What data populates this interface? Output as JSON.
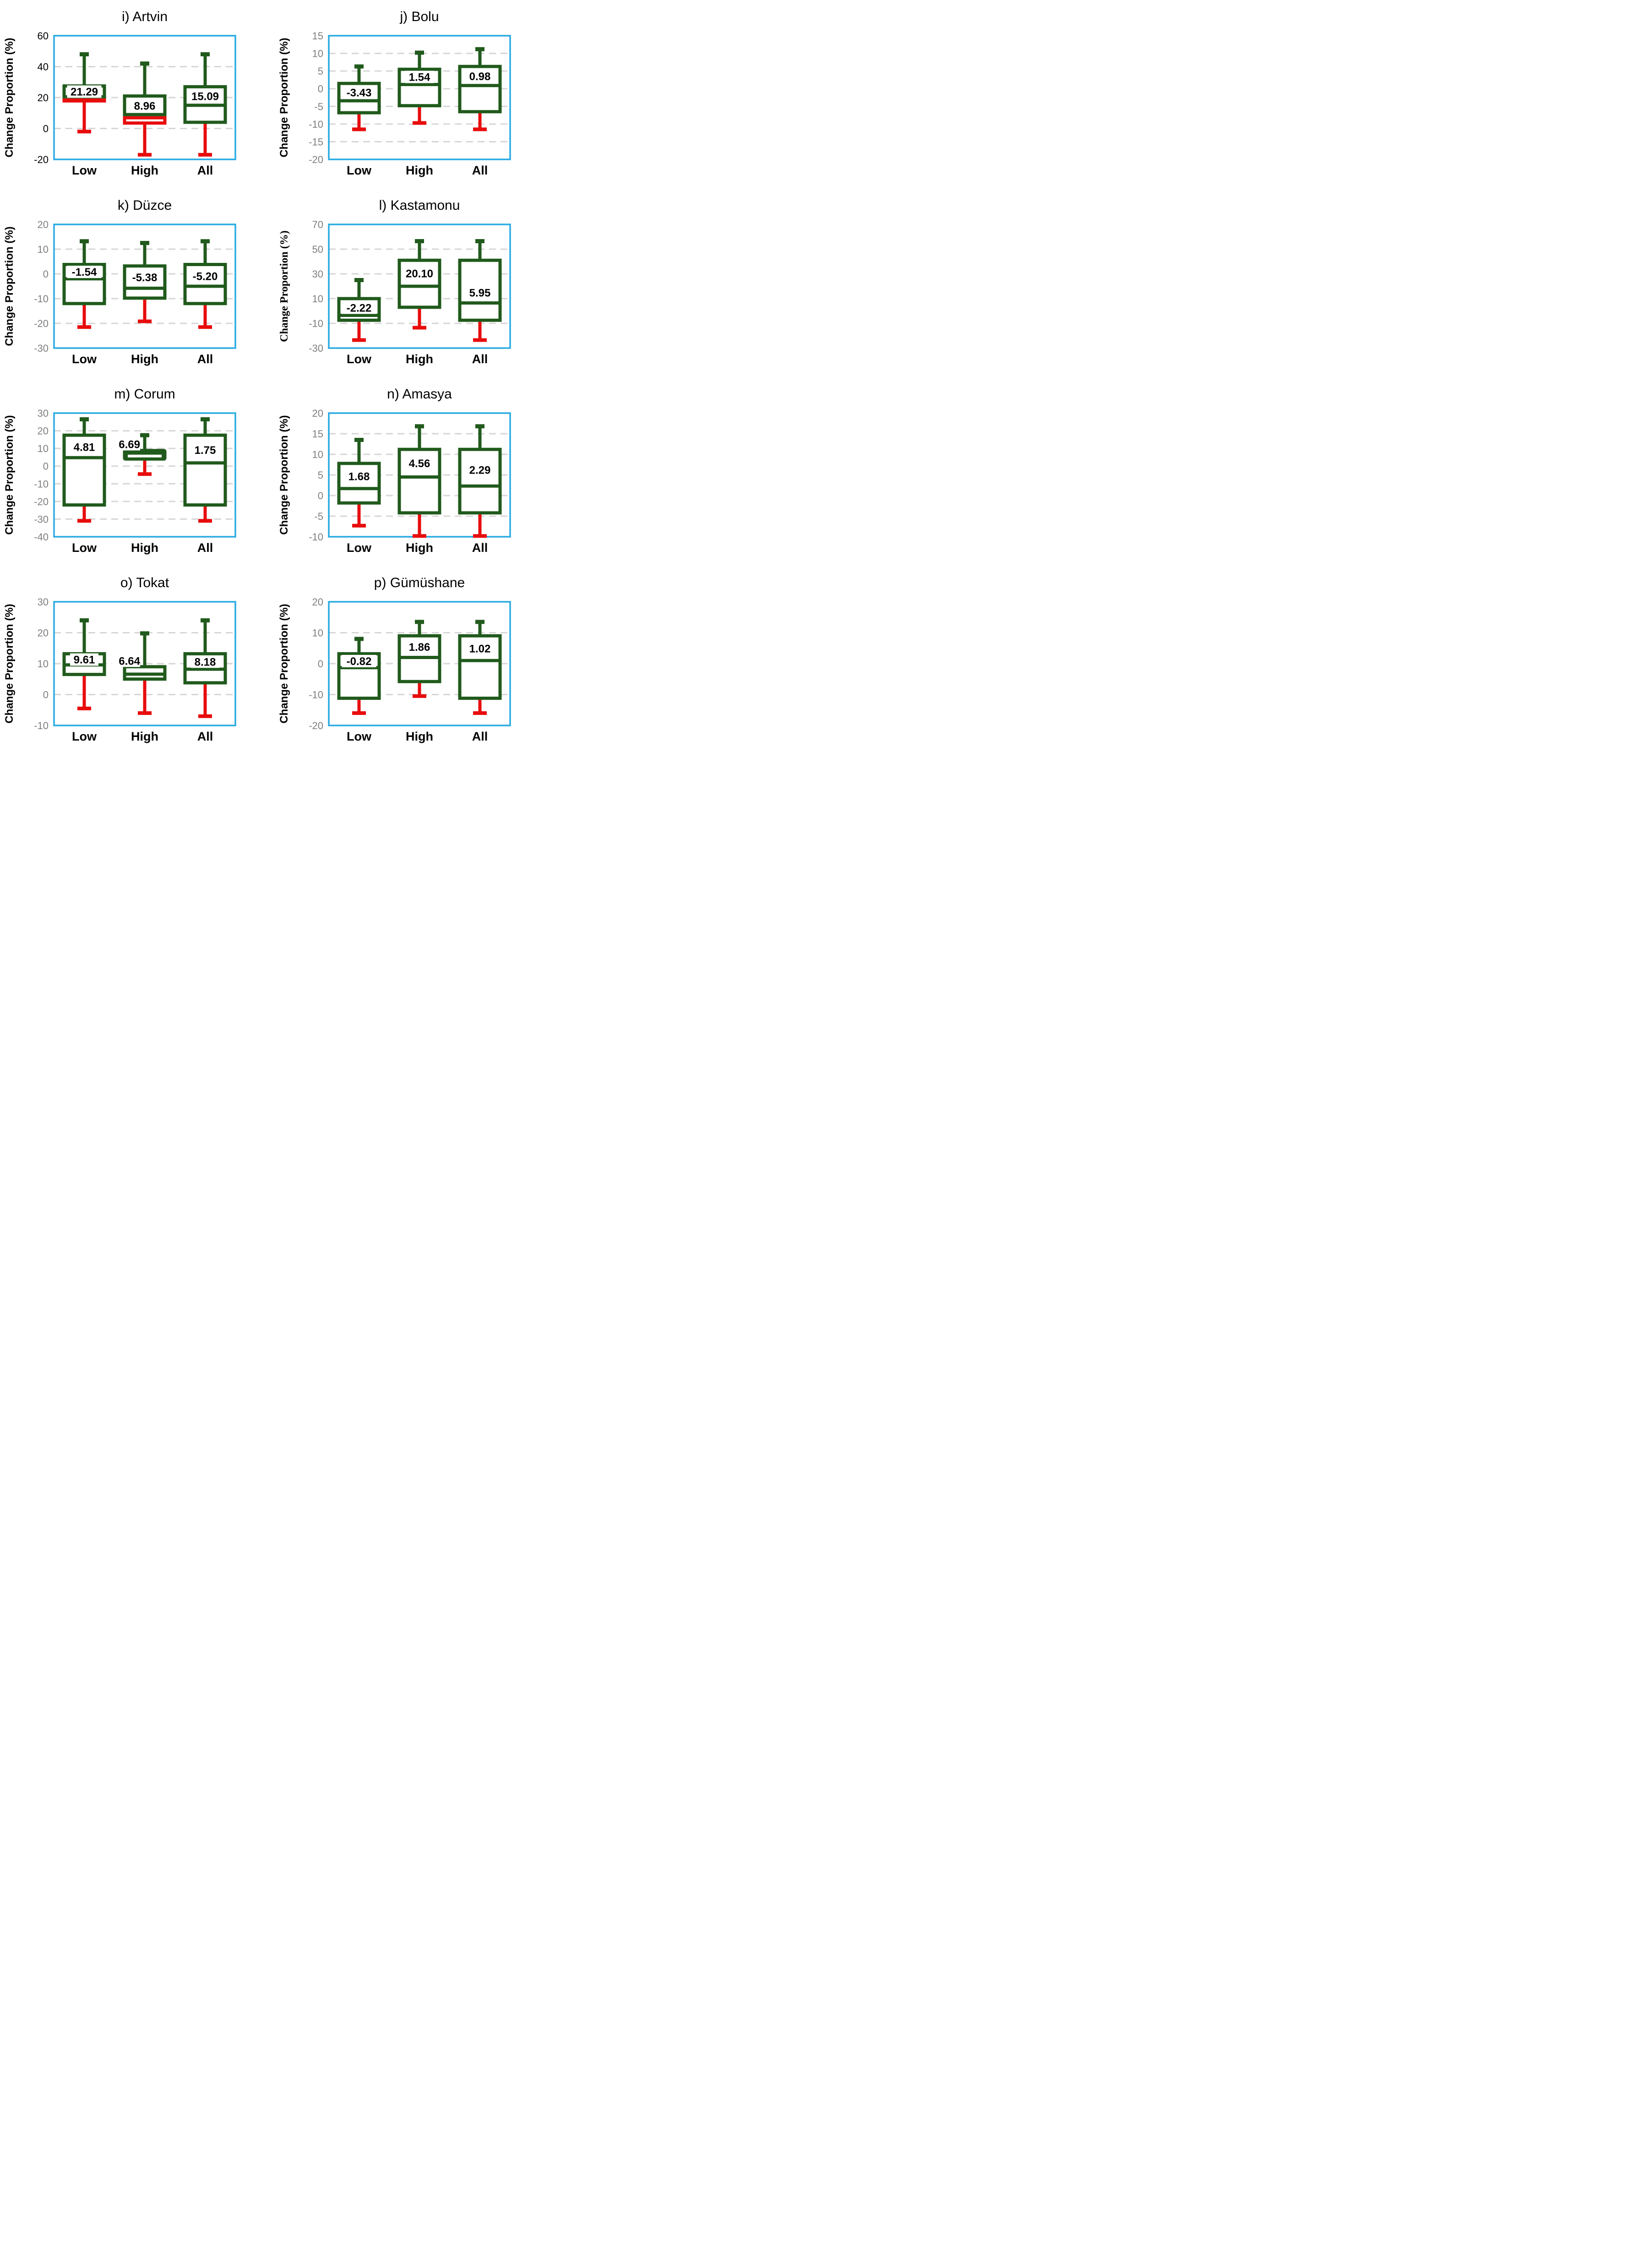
{
  "figure": {
    "name": "change-proportion-boxplot-grid",
    "background": "#FFFFFF",
    "colors": {
      "box_green": "#205A1C",
      "whisker_red": "#E80C0C",
      "plot_border_blue": "#29ABE2",
      "gridline_gray": "#D6D6D6",
      "tick_gray": "#7F7F7F",
      "tick_black": "#000000",
      "label_black": "#000000",
      "median_white": "#FFFFFF"
    }
  },
  "chart_data": [
    {
      "type": "boxplot",
      "id": "i",
      "title": "i) Artvin",
      "ylabel": "Change Proportion (%)",
      "ylabel_font": "sans",
      "tick_color": "#000000",
      "ylim": [
        -20,
        60
      ],
      "yticks": [
        60,
        40,
        20,
        0,
        -20
      ],
      "grid": "dashed-horizontal",
      "categories": [
        "Low",
        "High",
        "All"
      ],
      "boxes": [
        {
          "category": "Low",
          "whisker_min": -2,
          "q1": 18.5,
          "median": 20.5,
          "q3": 27.5,
          "whisker_max": 48,
          "label": "21.29",
          "label_y": 24,
          "label_pos": "in",
          "lower_box": "red",
          "fill": "white"
        },
        {
          "category": "High",
          "whisker_min": -17,
          "q1": 3.5,
          "median": 9,
          "q3": 21,
          "whisker_max": 42,
          "label": "8.96",
          "label_y": 14.8,
          "label_pos": "in",
          "lower_box": "red",
          "fill": "white"
        },
        {
          "category": "All",
          "whisker_min": -17,
          "q1": 4,
          "median": 15,
          "q3": 27,
          "whisker_max": 48,
          "label": "15.09",
          "label_y": 21,
          "label_pos": "in",
          "lower_box": "green",
          "fill": "white"
        }
      ]
    },
    {
      "type": "boxplot",
      "id": "j",
      "title": "j) Bolu",
      "ylabel": "Change Proportion (%)",
      "ylabel_font": "sans",
      "tick_color": "#7F7F7F",
      "ylim": [
        -20,
        15
      ],
      "yticks": [
        15,
        10,
        5,
        0,
        -5,
        -10,
        -15,
        -20
      ],
      "grid": "dashed-horizontal",
      "categories": [
        "Low",
        "High",
        "All"
      ],
      "boxes": [
        {
          "category": "Low",
          "whisker_min": -11.5,
          "q1": -6.8,
          "median": -3.4,
          "q3": 1.5,
          "whisker_max": 6.3,
          "label": "-3.43",
          "label_y": -1,
          "label_pos": "in",
          "lower_box": "green",
          "fill": "white"
        },
        {
          "category": "High",
          "whisker_min": -9.7,
          "q1": -4.8,
          "median": 1.2,
          "q3": 5.5,
          "whisker_max": 10.2,
          "label": "1.54",
          "label_y": 3.4,
          "label_pos": "in",
          "lower_box": "green",
          "fill": "white"
        },
        {
          "category": "All",
          "whisker_min": -11.5,
          "q1": -6.5,
          "median": 0.9,
          "q3": 6.3,
          "whisker_max": 11.2,
          "label": "0.98",
          "label_y": 3.6,
          "label_pos": "in",
          "lower_box": "green",
          "fill": "white"
        }
      ]
    },
    {
      "type": "boxplot",
      "id": "k",
      "title": "k) Düzce",
      "ylabel": "Change Proportion (%)",
      "ylabel_font": "sans",
      "tick_color": "#7F7F7F",
      "ylim": [
        -30,
        20
      ],
      "yticks": [
        20,
        10,
        0,
        -10,
        -20,
        -30
      ],
      "grid": "dashed-horizontal",
      "categories": [
        "Low",
        "High",
        "All"
      ],
      "boxes": [
        {
          "category": "Low",
          "whisker_min": -21.5,
          "q1": -12,
          "median": -2,
          "q3": 3.8,
          "whisker_max": 13.2,
          "label": "-1.54",
          "label_y": 0.9,
          "label_pos": "in",
          "lower_box": "green",
          "fill": "white"
        },
        {
          "category": "High",
          "whisker_min": -19.2,
          "q1": -9.8,
          "median": -5.8,
          "q3": 3.2,
          "whisker_max": 12.5,
          "label": "-5.38",
          "label_y": -1.3,
          "label_pos": "in",
          "lower_box": "green",
          "fill": "white"
        },
        {
          "category": "All",
          "whisker_min": -21.5,
          "q1": -12,
          "median": -5,
          "q3": 3.8,
          "whisker_max": 13.2,
          "label": "-5.20",
          "label_y": -0.8,
          "label_pos": "in",
          "lower_box": "green",
          "fill": "white"
        }
      ]
    },
    {
      "type": "boxplot",
      "id": "l",
      "title": "l) Kastamonu",
      "ylabel": "Change Proportion (%)",
      "ylabel_font": "serif",
      "tick_color": "#7F7F7F",
      "ylim": [
        -30,
        70
      ],
      "yticks": [
        70,
        50,
        30,
        10,
        -10,
        -30
      ],
      "grid": "dashed-horizontal",
      "categories": [
        "Low",
        "High",
        "All"
      ],
      "boxes": [
        {
          "category": "Low",
          "whisker_min": -23.5,
          "q1": -7.5,
          "median": -3.5,
          "q3": 10,
          "whisker_max": 25,
          "label": "-2.22",
          "label_y": 2.8,
          "label_pos": "in",
          "lower_box": "green",
          "fill": "white"
        },
        {
          "category": "High",
          "whisker_min": -13.5,
          "q1": 3,
          "median": 20,
          "q3": 41,
          "whisker_max": 56.5,
          "label": "20.10",
          "label_y": 30.5,
          "label_pos": "in",
          "lower_box": "green",
          "fill": "white"
        },
        {
          "category": "All",
          "whisker_min": -23.5,
          "q1": -7.5,
          "median": 6.5,
          "q3": 41,
          "whisker_max": 56.5,
          "label": "5.95",
          "label_y": 15,
          "label_pos": "in",
          "lower_box": "green",
          "fill": "white"
        }
      ]
    },
    {
      "type": "boxplot",
      "id": "m",
      "title": "m) Corum",
      "ylabel": "Change Proportion (%)",
      "ylabel_font": "sans",
      "tick_color": "#7F7F7F",
      "ylim": [
        -40,
        30
      ],
      "yticks": [
        30,
        20,
        10,
        0,
        -10,
        -20,
        -30,
        -40
      ],
      "grid": "dashed-horizontal",
      "categories": [
        "Low",
        "High",
        "All"
      ],
      "boxes": [
        {
          "category": "Low",
          "whisker_min": -31,
          "q1": -22,
          "median": 4.8,
          "q3": 17.5,
          "whisker_max": 26.5,
          "label": "4.81",
          "label_y": 11,
          "label_pos": "in",
          "lower_box": "green",
          "fill": "white"
        },
        {
          "category": "High",
          "whisker_min": -4.5,
          "q1": 4,
          "median": 5.7,
          "q3": 8.8,
          "whisker_max": 17.5,
          "label": "6.69",
          "label_y": 12.5,
          "label_pos": "left",
          "lower_box": "green",
          "fill": "green"
        },
        {
          "category": "All",
          "whisker_min": -31,
          "q1": -22,
          "median": 1.8,
          "q3": 17.5,
          "whisker_max": 26.5,
          "label": "1.75",
          "label_y": 9.3,
          "label_pos": "in",
          "lower_box": "green",
          "fill": "white"
        }
      ]
    },
    {
      "type": "boxplot",
      "id": "n",
      "title": "n) Amasya",
      "ylabel": "Change Proportion (%)",
      "ylabel_font": "sans",
      "tick_color": "#7F7F7F",
      "ylim": [
        -10,
        20
      ],
      "yticks": [
        20,
        15,
        10,
        5,
        0,
        -5,
        -10
      ],
      "grid": "dashed-horizontal",
      "categories": [
        "Low",
        "High",
        "All"
      ],
      "boxes": [
        {
          "category": "Low",
          "whisker_min": -7.3,
          "q1": -1.8,
          "median": 1.7,
          "q3": 7.8,
          "whisker_max": 13.5,
          "label": "1.68",
          "label_y": 4.7,
          "label_pos": "in",
          "lower_box": "green",
          "fill": "white"
        },
        {
          "category": "High",
          "whisker_min": -9.8,
          "q1": -4.2,
          "median": 4.5,
          "q3": 11.2,
          "whisker_max": 16.8,
          "label": "4.56",
          "label_y": 7.9,
          "label_pos": "in",
          "lower_box": "green",
          "fill": "white"
        },
        {
          "category": "All",
          "whisker_min": -9.8,
          "q1": -4.2,
          "median": 2.3,
          "q3": 11.2,
          "whisker_max": 16.8,
          "label": "2.29",
          "label_y": 6.3,
          "label_pos": "in",
          "lower_box": "green",
          "fill": "white"
        }
      ]
    },
    {
      "type": "boxplot",
      "id": "o",
      "title": "o) Tokat",
      "ylabel": "Change Proportion (%)",
      "ylabel_font": "sans",
      "tick_color": "#7F7F7F",
      "ylim": [
        -10,
        30
      ],
      "yticks": [
        30,
        20,
        10,
        0,
        -10
      ],
      "grid": "dashed-horizontal",
      "categories": [
        "Low",
        "High",
        "All"
      ],
      "boxes": [
        {
          "category": "Low",
          "whisker_min": -4.5,
          "q1": 6.5,
          "median": 9.6,
          "q3": 13.2,
          "whisker_max": 24,
          "label": "9.61",
          "label_y": 11.4,
          "label_pos": "in",
          "lower_box": "green",
          "fill": "white"
        },
        {
          "category": "High",
          "whisker_min": -6,
          "q1": 5,
          "median": 6.6,
          "q3": 9,
          "whisker_max": 19.8,
          "label": "6.64",
          "label_y": 11,
          "label_pos": "left",
          "lower_box": "green",
          "fill": "white"
        },
        {
          "category": "All",
          "whisker_min": -7,
          "q1": 3.8,
          "median": 8.2,
          "q3": 13.2,
          "whisker_max": 24,
          "label": "8.18",
          "label_y": 10.7,
          "label_pos": "in",
          "lower_box": "green",
          "fill": "white"
        }
      ]
    },
    {
      "type": "boxplot",
      "id": "p",
      "title": "p) Gümüshane",
      "ylabel": "Change Proportion (%)",
      "ylabel_font": "sans",
      "tick_color": "#7F7F7F",
      "ylim": [
        -20,
        20
      ],
      "yticks": [
        20,
        10,
        0,
        -10,
        -20
      ],
      "grid": "dashed-horizontal",
      "categories": [
        "Low",
        "High",
        "All"
      ],
      "boxes": [
        {
          "category": "Low",
          "whisker_min": -16,
          "q1": -11.2,
          "median": -1.3,
          "q3": 3.2,
          "whisker_max": 8,
          "label": "-0.82",
          "label_y": 0.9,
          "label_pos": "in",
          "lower_box": "green",
          "fill": "white"
        },
        {
          "category": "High",
          "whisker_min": -10.5,
          "q1": -5.8,
          "median": 2,
          "q3": 9,
          "whisker_max": 13.5,
          "label": "1.86",
          "label_y": 5.5,
          "label_pos": "in",
          "lower_box": "green",
          "fill": "white"
        },
        {
          "category": "All",
          "whisker_min": -16,
          "q1": -11.2,
          "median": 1,
          "q3": 9,
          "whisker_max": 13.5,
          "label": "1.02",
          "label_y": 5,
          "label_pos": "in",
          "lower_box": "green",
          "fill": "white"
        }
      ]
    }
  ]
}
